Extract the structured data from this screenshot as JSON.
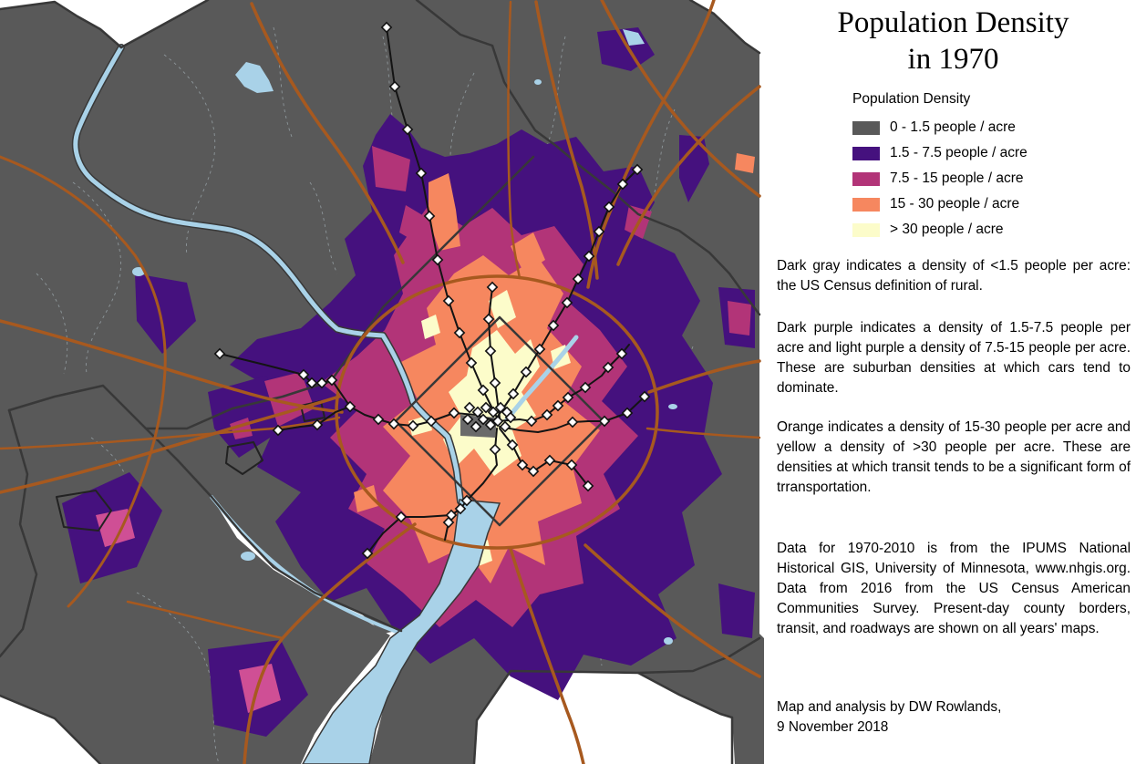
{
  "panel": {
    "title_line1": "Population Density",
    "title_line2": "in 1970",
    "legend": {
      "header": "Population Density",
      "items": [
        {
          "label": "0 - 1.5 people / acre",
          "color": "#595959"
        },
        {
          "label": "1.5 - 7.5 people / acre",
          "color": "#45117e"
        },
        {
          "label": "7.5 - 15 people / acre",
          "color": "#b23478"
        },
        {
          "label": "15 - 30 people / acre",
          "color": "#f6875f"
        },
        {
          "label": "> 30 people / acre",
          "color": "#fcfcca"
        }
      ]
    },
    "paragraphs": [
      "Dark gray indicates a density of <1.5 people per acre: the US Census definition of rural.",
      "Dark purple indicates a density of 1.5-7.5 people per acre and light purple a density of 7.5-15 people per acre.  These are suburban densities at which cars tend to dominate.",
      "Orange indicates a density of 15-30 people per acre and yellow a density of >30 people per acre.  These are densities at which transit tends to be a significant form of trransportation.",
      "Data for 1970-2010 is from the IPUMS National Historical GIS, University of Minnesota, www.nhgis.org.  Data from 2016 from the US Census American Communities Survey.  Present-day county borders, transit, and roadways are shown on all years' maps."
    ],
    "credit": {
      "line1": "Map and analysis by DW Rowlands,",
      "line2": "9 November 2018"
    }
  },
  "map": {
    "colors": {
      "rural_gray": "#595959",
      "purple": "#45117e",
      "magenta": "#b23478",
      "pink_light": "#cf4f95",
      "orange": "#f6875f",
      "yellow": "#fcfcca",
      "water": "#a9d2e8",
      "road": "#a7591f",
      "border": "#383838",
      "tract_line": "#97a1a6",
      "transit": "#141414",
      "station_fill": "#ffffff",
      "city_outline": "#222222",
      "mall_gray": "#6a6a6a"
    },
    "legend_note": "Choropleth map of census-tract population density around Washington, DC with county borders, roadways, transit lines and stations"
  }
}
